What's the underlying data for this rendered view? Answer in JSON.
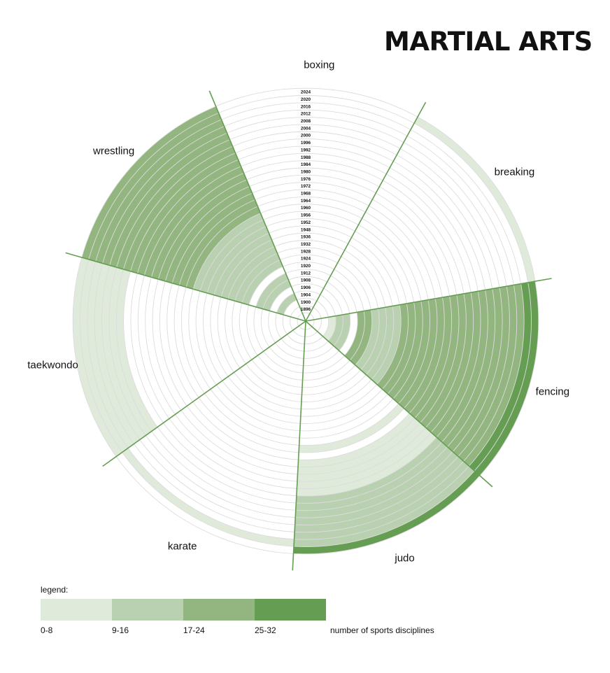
{
  "title": "MARTIAL ARTS",
  "chart_data": {
    "type": "polar-area",
    "ring_years": [
      "1896",
      "1900",
      "1904",
      "1906",
      "1908",
      "1912",
      "1920",
      "1924",
      "1928",
      "1932",
      "1936",
      "1948",
      "1952",
      "1956",
      "1960",
      "1964",
      "1968",
      "1972",
      "1976",
      "1980",
      "1984",
      "1988",
      "1992",
      "1996",
      "2000",
      "2004",
      "2008",
      "2012",
      "2016",
      "2020",
      "2024"
    ],
    "sectors": [
      {
        "name": "boxing",
        "values": [
          0,
          0,
          0,
          0,
          0,
          0,
          0,
          0,
          0,
          0,
          0,
          0,
          0,
          0,
          0,
          0,
          0,
          0,
          0,
          0,
          0,
          0,
          0,
          0,
          0,
          0,
          0,
          0,
          0,
          0,
          0
        ],
        "levels": [
          0,
          0,
          0,
          0,
          0,
          0,
          0,
          0,
          0,
          0,
          0,
          0,
          0,
          0,
          0,
          0,
          0,
          0,
          0,
          0,
          0,
          0,
          0,
          0,
          0,
          0,
          0,
          0,
          0,
          0,
          0
        ]
      },
      {
        "name": "breaking",
        "values": [],
        "levels": [
          0,
          0,
          0,
          0,
          0,
          0,
          0,
          0,
          0,
          0,
          0,
          0,
          0,
          0,
          0,
          0,
          0,
          0,
          0,
          0,
          0,
          0,
          0,
          0,
          0,
          0,
          0,
          0,
          0,
          0,
          1
        ]
      },
      {
        "name": "fencing",
        "values": [],
        "levels": [
          0,
          0,
          1,
          2,
          2,
          0,
          3,
          3,
          2,
          2,
          2,
          2,
          3,
          3,
          3,
          3,
          3,
          3,
          3,
          3,
          3,
          3,
          3,
          3,
          3,
          3,
          3,
          3,
          3,
          4,
          4
        ]
      },
      {
        "name": "judo",
        "values": [],
        "levels": [
          0,
          0,
          0,
          0,
          0,
          0,
          0,
          0,
          0,
          0,
          0,
          0,
          0,
          0,
          0,
          0,
          1,
          0,
          1,
          1,
          1,
          1,
          1,
          2,
          2,
          2,
          2,
          2,
          2,
          2,
          4
        ]
      },
      {
        "name": "karate",
        "values": [],
        "levels": [
          0,
          0,
          0,
          0,
          0,
          0,
          0,
          0,
          0,
          0,
          0,
          0,
          0,
          0,
          0,
          0,
          0,
          0,
          0,
          0,
          0,
          0,
          0,
          0,
          0,
          0,
          0,
          0,
          0,
          1,
          0
        ]
      },
      {
        "name": "taekwondo",
        "values": [],
        "levels": [
          0,
          0,
          0,
          0,
          0,
          0,
          0,
          0,
          0,
          0,
          0,
          0,
          0,
          0,
          0,
          0,
          0,
          0,
          0,
          0,
          0,
          0,
          0,
          0,
          1,
          1,
          1,
          1,
          1,
          1,
          1
        ]
      },
      {
        "name": "wrestling",
        "values": [],
        "levels": [
          0,
          0,
          2,
          0,
          2,
          2,
          0,
          2,
          2,
          2,
          2,
          2,
          2,
          2,
          2,
          3,
          3,
          3,
          3,
          3,
          3,
          3,
          3,
          3,
          3,
          3,
          3,
          3,
          3,
          3,
          3
        ]
      }
    ],
    "legend_ranges": [
      "0-8",
      "9-16",
      "17-24",
      "25-32"
    ],
    "legend_colors": [
      "#dfeadb",
      "#bad1b1",
      "#93b57f",
      "#659d53"
    ],
    "legend_caption": "number of sports disciplines"
  },
  "legend": {
    "title": "legend:"
  },
  "colors": {
    "ring_line": "#dcdcdc",
    "divider": "#659d53",
    "white_gap": "#ffffff"
  }
}
